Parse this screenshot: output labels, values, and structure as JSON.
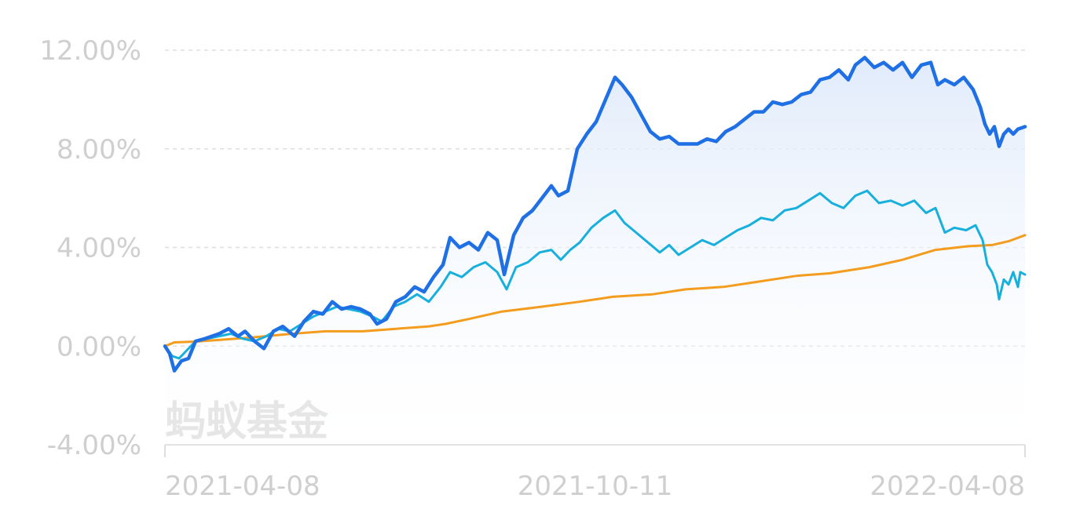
{
  "watermark": "蚂蚁基金",
  "colors": {
    "series_main": "#1f6fe5",
    "series_cyan": "#17b0dc",
    "series_orange": "#f39c1e",
    "area_fill": "#e8f0fc",
    "grid": "#dedede",
    "axis": "#dedede",
    "tick_text": "#cfcfcf"
  },
  "chart_data": {
    "type": "line",
    "title": "",
    "xlabel": "",
    "ylabel": "",
    "x_tick_labels": [
      "2021-04-08",
      "2021-10-11",
      "2022-04-08"
    ],
    "x_range": [
      "2021-04-08",
      "2022-04-08"
    ],
    "y_tick_labels": [
      "12.00%",
      "8.00%",
      "4.00%",
      "0.00%",
      "-4.00%"
    ],
    "y_ticks": [
      12,
      8,
      4,
      0,
      -4
    ],
    "ylim": [
      -4,
      12
    ],
    "y_unit": "%",
    "grid": true,
    "legend": false,
    "series": [
      {
        "key": "main",
        "area": true,
        "points": [
          [
            "2021-04-08",
            0.0
          ],
          [
            "2021-04-10",
            -0.3
          ],
          [
            "2021-04-12",
            -1.0
          ],
          [
            "2021-04-15",
            -0.6
          ],
          [
            "2021-04-18",
            -0.5
          ],
          [
            "2021-04-21",
            0.2
          ],
          [
            "2021-04-25",
            0.3
          ],
          [
            "2021-05-01",
            0.5
          ],
          [
            "2021-05-05",
            0.7
          ],
          [
            "2021-05-09",
            0.4
          ],
          [
            "2021-05-12",
            0.6
          ],
          [
            "2021-05-16",
            0.2
          ],
          [
            "2021-05-20",
            -0.1
          ],
          [
            "2021-05-24",
            0.6
          ],
          [
            "2021-05-28",
            0.8
          ],
          [
            "2021-06-02",
            0.4
          ],
          [
            "2021-06-06",
            1.0
          ],
          [
            "2021-06-10",
            1.4
          ],
          [
            "2021-06-14",
            1.3
          ],
          [
            "2021-06-18",
            1.8
          ],
          [
            "2021-06-22",
            1.5
          ],
          [
            "2021-06-26",
            1.6
          ],
          [
            "2021-06-30",
            1.5
          ],
          [
            "2021-07-04",
            1.3
          ],
          [
            "2021-07-07",
            0.9
          ],
          [
            "2021-07-11",
            1.1
          ],
          [
            "2021-07-15",
            1.8
          ],
          [
            "2021-07-19",
            2.0
          ],
          [
            "2021-07-23",
            2.4
          ],
          [
            "2021-07-27",
            2.2
          ],
          [
            "2021-07-31",
            2.8
          ],
          [
            "2021-08-04",
            3.3
          ],
          [
            "2021-08-07",
            4.4
          ],
          [
            "2021-08-11",
            4.0
          ],
          [
            "2021-08-15",
            4.2
          ],
          [
            "2021-08-19",
            3.9
          ],
          [
            "2021-08-23",
            4.6
          ],
          [
            "2021-08-27",
            4.3
          ],
          [
            "2021-08-30",
            2.9
          ],
          [
            "2021-09-03",
            4.5
          ],
          [
            "2021-09-07",
            5.2
          ],
          [
            "2021-09-11",
            5.5
          ],
          [
            "2021-09-15",
            6.0
          ],
          [
            "2021-09-19",
            6.5
          ],
          [
            "2021-09-22",
            6.1
          ],
          [
            "2021-09-26",
            6.3
          ],
          [
            "2021-09-30",
            8.0
          ],
          [
            "2021-10-04",
            8.6
          ],
          [
            "2021-10-08",
            9.1
          ],
          [
            "2021-10-12",
            10.0
          ],
          [
            "2021-10-16",
            10.9
          ],
          [
            "2021-10-19",
            10.6
          ],
          [
            "2021-10-23",
            10.1
          ],
          [
            "2021-10-27",
            9.4
          ],
          [
            "2021-10-31",
            8.7
          ],
          [
            "2021-11-04",
            8.4
          ],
          [
            "2021-11-08",
            8.5
          ],
          [
            "2021-11-12",
            8.2
          ],
          [
            "2021-11-16",
            8.2
          ],
          [
            "2021-11-20",
            8.2
          ],
          [
            "2021-11-24",
            8.4
          ],
          [
            "2021-11-28",
            8.3
          ],
          [
            "2021-12-02",
            8.7
          ],
          [
            "2021-12-06",
            8.9
          ],
          [
            "2021-12-10",
            9.2
          ],
          [
            "2021-12-14",
            9.5
          ],
          [
            "2021-12-18",
            9.5
          ],
          [
            "2021-12-22",
            9.9
          ],
          [
            "2021-12-26",
            9.8
          ],
          [
            "2021-12-30",
            9.9
          ],
          [
            "2022-01-03",
            10.2
          ],
          [
            "2022-01-07",
            10.3
          ],
          [
            "2022-01-11",
            10.8
          ],
          [
            "2022-01-15",
            10.9
          ],
          [
            "2022-01-19",
            11.2
          ],
          [
            "2022-01-23",
            10.8
          ],
          [
            "2022-01-26",
            11.4
          ],
          [
            "2022-01-30",
            11.7
          ],
          [
            "2022-02-03",
            11.3
          ],
          [
            "2022-02-07",
            11.5
          ],
          [
            "2022-02-11",
            11.2
          ],
          [
            "2022-02-15",
            11.5
          ],
          [
            "2022-02-19",
            10.9
          ],
          [
            "2022-02-23",
            11.4
          ],
          [
            "2022-02-27",
            11.5
          ],
          [
            "2022-03-02",
            10.6
          ],
          [
            "2022-03-05",
            10.8
          ],
          [
            "2022-03-09",
            10.6
          ],
          [
            "2022-03-13",
            10.9
          ],
          [
            "2022-03-17",
            10.4
          ],
          [
            "2022-03-20",
            9.7
          ],
          [
            "2022-03-22",
            9.0
          ],
          [
            "2022-03-24",
            8.6
          ],
          [
            "2022-03-26",
            8.9
          ],
          [
            "2022-03-28",
            8.1
          ],
          [
            "2022-03-30",
            8.6
          ],
          [
            "2022-04-01",
            8.8
          ],
          [
            "2022-04-03",
            8.6
          ],
          [
            "2022-04-05",
            8.8
          ],
          [
            "2022-04-08",
            8.9
          ]
        ]
      },
      {
        "key": "cyan",
        "area": false,
        "points": [
          [
            "2021-04-08",
            0.0
          ],
          [
            "2021-04-11",
            -0.4
          ],
          [
            "2021-04-14",
            -0.5
          ],
          [
            "2021-04-17",
            -0.2
          ],
          [
            "2021-04-21",
            0.2
          ],
          [
            "2021-04-26",
            0.3
          ],
          [
            "2021-05-01",
            0.4
          ],
          [
            "2021-05-06",
            0.5
          ],
          [
            "2021-05-11",
            0.3
          ],
          [
            "2021-05-16",
            0.2
          ],
          [
            "2021-05-21",
            0.4
          ],
          [
            "2021-05-26",
            0.7
          ],
          [
            "2021-05-31",
            0.6
          ],
          [
            "2021-06-05",
            0.9
          ],
          [
            "2021-06-10",
            1.2
          ],
          [
            "2021-06-15",
            1.4
          ],
          [
            "2021-06-20",
            1.6
          ],
          [
            "2021-06-25",
            1.5
          ],
          [
            "2021-06-30",
            1.4
          ],
          [
            "2021-07-05",
            1.2
          ],
          [
            "2021-07-09",
            1.0
          ],
          [
            "2021-07-14",
            1.6
          ],
          [
            "2021-07-19",
            1.8
          ],
          [
            "2021-07-24",
            2.1
          ],
          [
            "2021-07-29",
            1.8
          ],
          [
            "2021-08-03",
            2.4
          ],
          [
            "2021-08-07",
            3.0
          ],
          [
            "2021-08-12",
            2.8
          ],
          [
            "2021-08-17",
            3.2
          ],
          [
            "2021-08-22",
            3.4
          ],
          [
            "2021-08-27",
            3.0
          ],
          [
            "2021-08-31",
            2.3
          ],
          [
            "2021-09-04",
            3.2
          ],
          [
            "2021-09-09",
            3.4
          ],
          [
            "2021-09-14",
            3.8
          ],
          [
            "2021-09-19",
            3.9
          ],
          [
            "2021-09-23",
            3.5
          ],
          [
            "2021-09-27",
            3.9
          ],
          [
            "2021-10-01",
            4.2
          ],
          [
            "2021-10-06",
            4.8
          ],
          [
            "2021-10-11",
            5.2
          ],
          [
            "2021-10-16",
            5.5
          ],
          [
            "2021-10-20",
            5.0
          ],
          [
            "2021-10-25",
            4.6
          ],
          [
            "2021-10-30",
            4.2
          ],
          [
            "2021-11-04",
            3.8
          ],
          [
            "2021-11-08",
            4.1
          ],
          [
            "2021-11-12",
            3.7
          ],
          [
            "2021-11-17",
            4.0
          ],
          [
            "2021-11-22",
            4.3
          ],
          [
            "2021-11-27",
            4.1
          ],
          [
            "2021-12-02",
            4.4
          ],
          [
            "2021-12-07",
            4.7
          ],
          [
            "2021-12-12",
            4.9
          ],
          [
            "2021-12-17",
            5.2
          ],
          [
            "2021-12-22",
            5.1
          ],
          [
            "2021-12-27",
            5.5
          ],
          [
            "2022-01-01",
            5.6
          ],
          [
            "2022-01-06",
            5.9
          ],
          [
            "2022-01-11",
            6.2
          ],
          [
            "2022-01-16",
            5.8
          ],
          [
            "2022-01-21",
            5.6
          ],
          [
            "2022-01-26",
            6.1
          ],
          [
            "2022-01-31",
            6.3
          ],
          [
            "2022-02-05",
            5.8
          ],
          [
            "2022-02-10",
            5.9
          ],
          [
            "2022-02-15",
            5.7
          ],
          [
            "2022-02-20",
            5.9
          ],
          [
            "2022-02-25",
            5.4
          ],
          [
            "2022-03-01",
            5.6
          ],
          [
            "2022-03-05",
            4.6
          ],
          [
            "2022-03-09",
            4.8
          ],
          [
            "2022-03-14",
            4.7
          ],
          [
            "2022-03-18",
            4.9
          ],
          [
            "2022-03-21",
            4.3
          ],
          [
            "2022-03-23",
            3.3
          ],
          [
            "2022-03-25",
            3.0
          ],
          [
            "2022-03-27",
            2.5
          ],
          [
            "2022-03-28",
            1.9
          ],
          [
            "2022-03-30",
            2.7
          ],
          [
            "2022-04-01",
            2.5
          ],
          [
            "2022-04-03",
            3.0
          ],
          [
            "2022-04-05",
            2.4
          ],
          [
            "2022-04-06",
            3.0
          ],
          [
            "2022-04-08",
            2.9
          ]
        ]
      },
      {
        "key": "orange",
        "area": false,
        "points": [
          [
            "2021-04-08",
            0.0
          ],
          [
            "2021-04-12",
            0.15
          ],
          [
            "2021-04-20",
            0.18
          ],
          [
            "2021-05-01",
            0.25
          ],
          [
            "2021-05-15",
            0.35
          ],
          [
            "2021-06-01",
            0.5
          ],
          [
            "2021-06-15",
            0.6
          ],
          [
            "2021-07-01",
            0.6
          ],
          [
            "2021-07-15",
            0.7
          ],
          [
            "2021-07-29",
            0.8
          ],
          [
            "2021-08-05",
            0.9
          ],
          [
            "2021-08-15",
            1.1
          ],
          [
            "2021-08-29",
            1.4
          ],
          [
            "2021-09-15",
            1.6
          ],
          [
            "2021-10-01",
            1.8
          ],
          [
            "2021-10-15",
            2.0
          ],
          [
            "2021-11-01",
            2.1
          ],
          [
            "2021-11-15",
            2.3
          ],
          [
            "2021-12-01",
            2.4
          ],
          [
            "2021-12-15",
            2.6
          ],
          [
            "2022-01-01",
            2.85
          ],
          [
            "2022-01-15",
            2.95
          ],
          [
            "2022-02-01",
            3.2
          ],
          [
            "2022-02-15",
            3.5
          ],
          [
            "2022-03-01",
            3.9
          ],
          [
            "2022-03-15",
            4.05
          ],
          [
            "2022-03-25",
            4.1
          ],
          [
            "2022-04-01",
            4.25
          ],
          [
            "2022-04-08",
            4.5
          ]
        ]
      }
    ]
  }
}
